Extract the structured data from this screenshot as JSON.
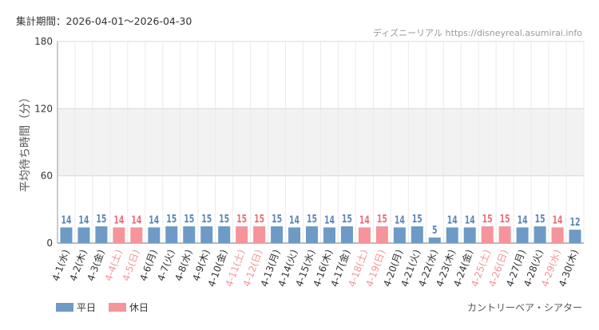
{
  "period_label": "集計期間：2026-04-01～2026-04-30",
  "source_label": "ディズニーリアル https://disneyreal.asumirai.info",
  "footer_label": "カントリーベア・シアター",
  "colors": {
    "weekday": "#6e9ac6",
    "holiday": "#f5949a",
    "weekday_text": "#5b86b5",
    "holiday_text": "#e96f78",
    "band": "#f2f2f2"
  },
  "chart_data": {
    "type": "bar",
    "ylabel": "平均待ち時間（分）",
    "ylim": [
      0,
      180
    ],
    "yticks": [
      0,
      60,
      120,
      180
    ],
    "shaded_bands": [
      [
        60,
        120
      ]
    ],
    "categories": [
      "4-1(水)",
      "4-2(木)",
      "4-3(金)",
      "4-4(土)",
      "4-5(日)",
      "4-6(月)",
      "4-7(火)",
      "4-8(水)",
      "4-9(木)",
      "4-10(金)",
      "4-11(土)",
      "4-12(日)",
      "4-13(月)",
      "4-14(火)",
      "4-15(水)",
      "4-16(木)",
      "4-17(金)",
      "4-18(土)",
      "4-19(日)",
      "4-20(月)",
      "4-21(火)",
      "4-22(水)",
      "4-23(木)",
      "4-24(金)",
      "4-25(土)",
      "4-26(日)",
      "4-27(月)",
      "4-28(火)",
      "4-29(水)",
      "4-30(木)"
    ],
    "values": [
      14,
      14,
      15,
      14,
      14,
      14,
      15,
      15,
      15,
      15,
      15,
      15,
      15,
      14,
      15,
      14,
      15,
      14,
      15,
      14,
      15,
      5,
      14,
      14,
      15,
      15,
      14,
      15,
      14,
      12
    ],
    "day_types": [
      "weekday",
      "weekday",
      "weekday",
      "holiday",
      "holiday",
      "weekday",
      "weekday",
      "weekday",
      "weekday",
      "weekday",
      "holiday",
      "holiday",
      "weekday",
      "weekday",
      "weekday",
      "weekday",
      "weekday",
      "holiday",
      "holiday",
      "weekday",
      "weekday",
      "weekday",
      "weekday",
      "weekday",
      "holiday",
      "holiday",
      "weekday",
      "weekday",
      "holiday",
      "weekday"
    ],
    "legend": [
      {
        "key": "weekday",
        "label": "平日"
      },
      {
        "key": "holiday",
        "label": "休日"
      }
    ],
    "legend_position": "bottom-left",
    "grid": true
  }
}
